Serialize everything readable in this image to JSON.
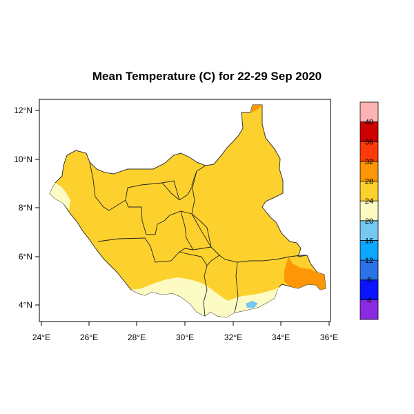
{
  "title": "Mean Temperature (C) for 22-29 Sep 2020",
  "map": {
    "lon_ticks": [
      "24°E",
      "26°E",
      "28°E",
      "30°E",
      "32°E",
      "34°E",
      "36°E"
    ],
    "lat_ticks": [
      "4°N",
      "6°N",
      "8°N",
      "10°N",
      "12°N"
    ],
    "lon_range": [
      23.9,
      36.1
    ],
    "lat_range": [
      3.3,
      12.5
    ]
  },
  "legend": {
    "labels": [
      "4",
      "8",
      "12",
      "16",
      "20",
      "24",
      "28",
      "32",
      "36",
      "40"
    ],
    "colors": [
      "#8a2be2",
      "#0a14ff",
      "#2a72e6",
      "#0aa8ff",
      "#75c8f2",
      "#fdfbc4",
      "#fdd12d",
      "#fd9707",
      "#fd3a0a",
      "#cf0000",
      "#fdb3b3"
    ]
  },
  "regions": [
    {
      "name": "above 28",
      "color": "#fd9707"
    },
    {
      "name": "24-28",
      "color": "#fdd12d"
    },
    {
      "name": "20-24",
      "color": "#fdfbc4"
    },
    {
      "name": "16-20",
      "color": "#75c8f2"
    }
  ]
}
